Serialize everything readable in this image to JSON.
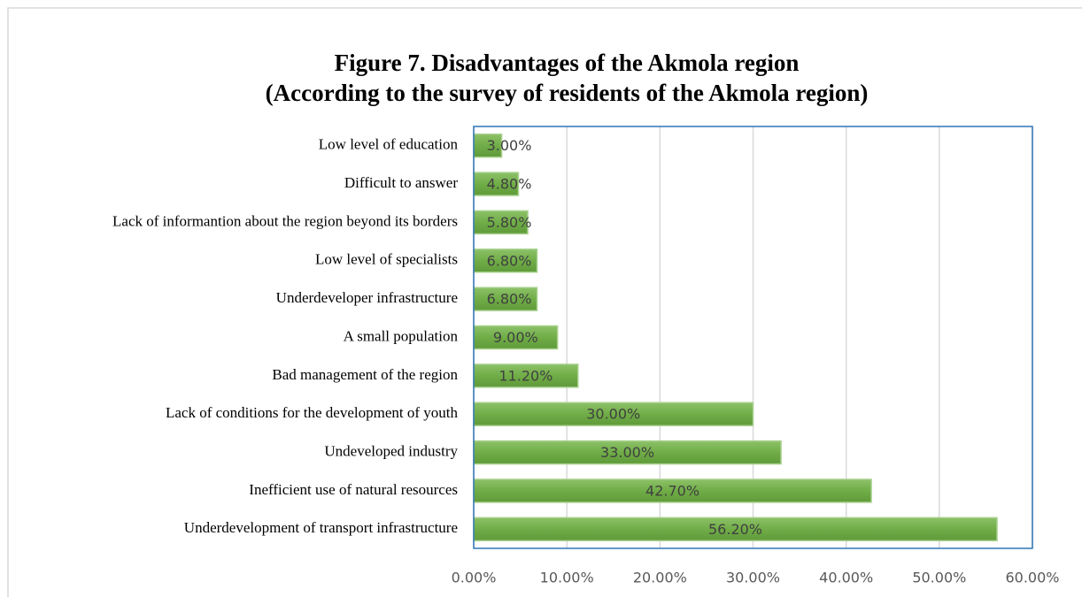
{
  "chart_data": {
    "type": "barh",
    "title": [
      "Figure 7. Disadvantages of the Akmola region",
      "(According to the survey of residents of the Akmola region)"
    ],
    "categories": [
      "Low level of education",
      "Difficult to answer",
      "Lack of informantion about the region beyond its borders",
      "Low level of specialists",
      "Underdeveloper infrastructure",
      "A small population",
      "Bad management of the region",
      "Lack of conditions for the development of youth",
      "Undeveloped industry",
      "Inefficient use of natural resources",
      "Underdevelopment of transport infrastructure"
    ],
    "values": [
      3.0,
      4.8,
      5.8,
      6.8,
      6.8,
      9.0,
      11.2,
      30.0,
      33.0,
      42.7,
      56.2
    ],
    "value_labels": [
      "3.00%",
      "4.80%",
      "5.80%",
      "6.80%",
      "6.80%",
      "9.00%",
      "11.20%",
      "30.00%",
      "33.00%",
      "42.70%",
      "56.20%"
    ],
    "color": "#70ad47",
    "xlim": [
      0,
      60
    ],
    "xticks": [
      {
        "value": 0,
        "label": "0.00%"
      },
      {
        "value": 10,
        "label": "10.00%"
      },
      {
        "value": 20,
        "label": "20.00%"
      },
      {
        "value": 30,
        "label": "30.00%"
      },
      {
        "value": 40,
        "label": "40.00%"
      },
      {
        "value": 50,
        "label": "50.00%"
      },
      {
        "value": 60,
        "label": "60.00%"
      }
    ],
    "grid": true
  }
}
